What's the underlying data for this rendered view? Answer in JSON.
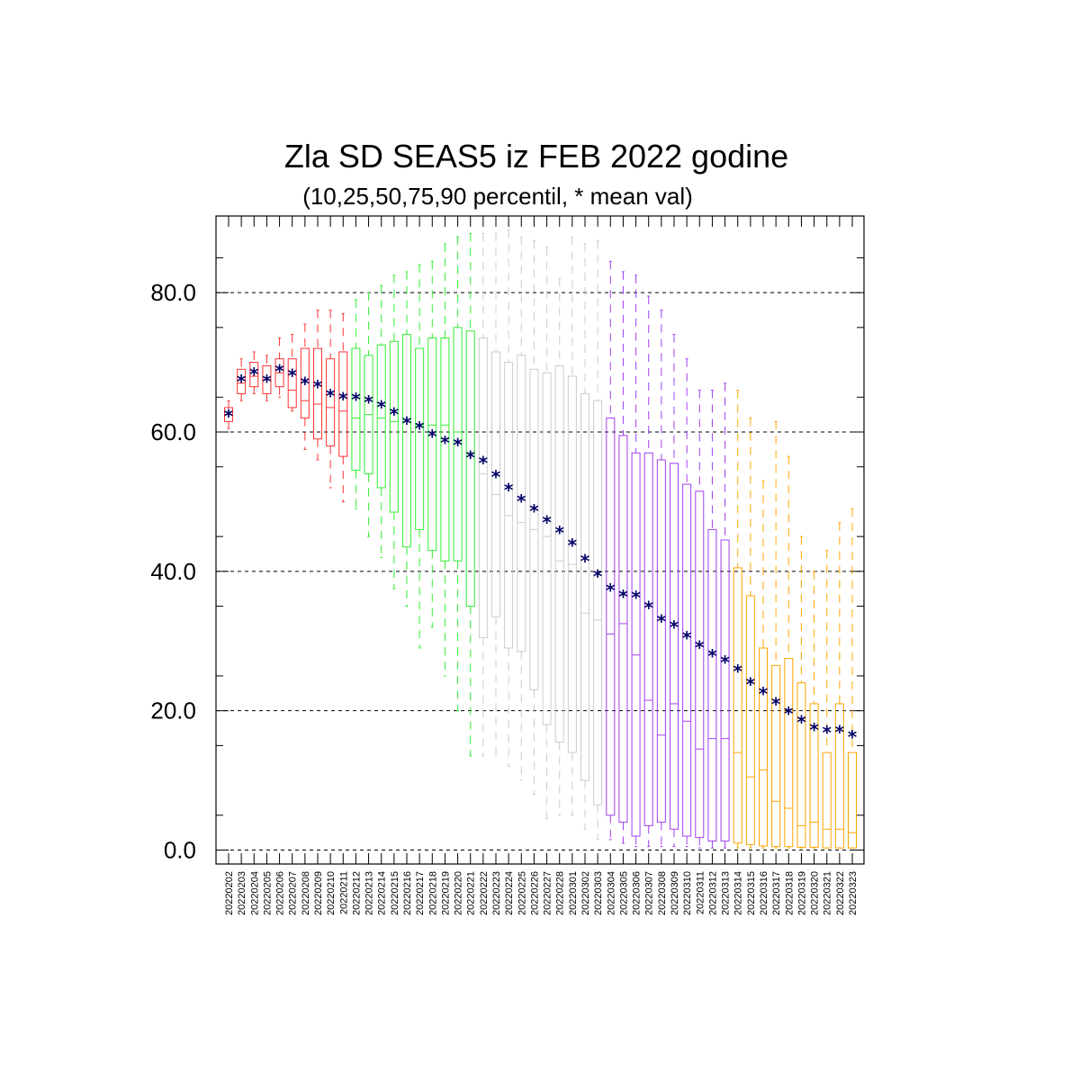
{
  "chart_data": {
    "type": "box",
    "title": "Zla SD SEAS5 iz FEB 2022 godine",
    "subtitle": "(10,25,50,75,90 percentil, * mean val)",
    "ylim": [
      -2,
      91
    ],
    "yticks": [
      "0.0",
      "20.0",
      "40.0",
      "60.0",
      "80.0"
    ],
    "ytick_values": [
      0,
      20,
      40,
      60,
      80
    ],
    "grid": "horizontal dashed at major ticks",
    "colors": {
      "feb": "#ff3333",
      "feb_late": "#33ee33",
      "mar_early": "#cccccc",
      "mar_mid": "#a040f0",
      "mar_late": "#ffa500",
      "mean_marker": "#000066"
    },
    "x": [
      "20220202",
      "20220203",
      "20220204",
      "20220205",
      "20220206",
      "20220207",
      "20220208",
      "20220209",
      "20220210",
      "20220211",
      "20220212",
      "20220213",
      "20220214",
      "20220215",
      "20220216",
      "20220217",
      "20220218",
      "20220219",
      "20220220",
      "20220221",
      "20220222",
      "20220223",
      "20220224",
      "20220225",
      "20220226",
      "20220227",
      "20220228",
      "20220301",
      "20220302",
      "20220303",
      "20220304",
      "20220305",
      "20220306",
      "20220307",
      "20220308",
      "20220309",
      "20220310",
      "20220311",
      "20220312",
      "20220313",
      "20220314",
      "20220315",
      "20220316",
      "20220317",
      "20220318",
      "20220319",
      "20220320",
      "20220321",
      "20220322",
      "20220323"
    ],
    "groups": [
      "feb",
      "feb",
      "feb",
      "feb",
      "feb",
      "feb",
      "feb",
      "feb",
      "feb",
      "feb",
      "feb_late",
      "feb_late",
      "feb_late",
      "feb_late",
      "feb_late",
      "feb_late",
      "feb_late",
      "feb_late",
      "feb_late",
      "feb_late",
      "mar_early",
      "mar_early",
      "mar_early",
      "mar_early",
      "mar_early",
      "mar_early",
      "mar_early",
      "mar_early",
      "mar_early",
      "mar_early",
      "mar_mid",
      "mar_mid",
      "mar_mid",
      "mar_mid",
      "mar_mid",
      "mar_mid",
      "mar_mid",
      "mar_mid",
      "mar_mid",
      "mar_mid",
      "mar_late",
      "mar_late",
      "mar_late",
      "mar_late",
      "mar_late",
      "mar_late",
      "mar_late",
      "mar_late",
      "mar_late",
      "mar_late"
    ],
    "p10": [
      60.5,
      64.5,
      65.5,
      64.5,
      65.0,
      63.0,
      57.5,
      56.0,
      52.0,
      50.0,
      49.0,
      45.0,
      42.0,
      37.5,
      35.0,
      29.0,
      32.0,
      25.0,
      20.0,
      13.5,
      13.5,
      13.5,
      12.0,
      10.0,
      8.0,
      4.5,
      5.0,
      5.0,
      3.0,
      1.5,
      1.5,
      1.0,
      0.5,
      0.5,
      0.5,
      0.5,
      0.5,
      0.3,
      0.3,
      0.3,
      0.3,
      0.3,
      0.3,
      0.3,
      0.3,
      0.3,
      0.3,
      0.3,
      0.3,
      0.3
    ],
    "p25": [
      61.5,
      65.5,
      66.5,
      65.5,
      66.5,
      63.5,
      62.0,
      59.0,
      58.0,
      56.5,
      54.5,
      54.0,
      52.0,
      48.5,
      43.5,
      46.0,
      43.0,
      41.5,
      41.5,
      35.0,
      30.5,
      33.5,
      29.0,
      28.5,
      23.0,
      18.0,
      15.5,
      14.0,
      10.0,
      6.5,
      5.0,
      4.0,
      2.0,
      3.5,
      4.0,
      3.0,
      2.0,
      1.8,
      1.3,
      1.3,
      1.0,
      0.8,
      0.6,
      0.5,
      0.5,
      0.4,
      0.4,
      0.3,
      0.3,
      0.3
    ],
    "median": [
      62.5,
      67.0,
      68.0,
      67.5,
      68.5,
      66.0,
      64.5,
      64.0,
      63.5,
      63.0,
      62.0,
      62.5,
      62.0,
      61.5,
      61.5,
      61.0,
      61.0,
      61.0,
      60.0,
      57.0,
      54.0,
      51.0,
      48.0,
      47.0,
      46.0,
      45.0,
      41.5,
      41.0,
      34.0,
      33.0,
      31.0,
      32.5,
      28.0,
      21.5,
      16.5,
      21.0,
      18.5,
      14.5,
      16.0,
      16.0,
      14.0,
      10.5,
      11.5,
      7.0,
      6.0,
      3.5,
      4.0,
      3.0,
      3.0,
      2.5
    ],
    "p75": [
      63.5,
      69.0,
      70.0,
      69.5,
      70.5,
      70.5,
      72.0,
      72.0,
      70.5,
      71.5,
      72.0,
      71.0,
      72.5,
      73.0,
      74.0,
      72.0,
      73.5,
      73.5,
      75.0,
      74.5,
      73.5,
      71.5,
      70.0,
      71.0,
      69.0,
      68.5,
      69.5,
      68.0,
      65.5,
      64.5,
      62.0,
      59.5,
      57.0,
      57.0,
      56.0,
      55.5,
      52.5,
      51.5,
      46.0,
      44.5,
      40.5,
      36.5,
      29.0,
      26.5,
      27.5,
      24.0,
      21.0,
      14.0,
      21.0,
      14.0
    ],
    "p90": [
      64.5,
      70.5,
      71.5,
      71.0,
      73.5,
      74.0,
      75.5,
      77.5,
      77.5,
      77.0,
      79.0,
      80.0,
      81.0,
      82.5,
      83.0,
      84.0,
      84.5,
      87.0,
      88.0,
      88.5,
      88.5,
      88.5,
      89.0,
      88.0,
      87.5,
      86.5,
      82.0,
      88.0,
      87.0,
      87.5,
      84.5,
      83.0,
      82.5,
      79.5,
      77.5,
      74.0,
      70.5,
      66.0,
      66.0,
      67.0,
      66.0,
      62.0,
      53.0,
      61.5,
      56.5,
      45.0,
      40.0,
      43.0,
      47.0,
      49.0
    ],
    "mean": [
      62.5,
      67.5,
      68.5,
      67.5,
      69.0,
      68.3,
      67.2,
      66.7,
      65.4,
      65.0,
      64.9,
      64.5,
      63.8,
      62.8,
      61.5,
      60.8,
      59.6,
      58.7,
      58.4,
      56.6,
      55.8,
      53.8,
      51.9,
      50.3,
      48.9,
      47.3,
      45.8,
      44.0,
      41.7,
      39.5,
      37.5,
      36.6,
      36.5,
      35.0,
      33.1,
      32.2,
      30.7,
      29.3,
      28.1,
      27.2,
      25.9,
      24.0,
      22.7,
      21.2,
      19.8,
      18.6,
      17.5,
      17.1,
      17.2,
      16.5
    ]
  }
}
